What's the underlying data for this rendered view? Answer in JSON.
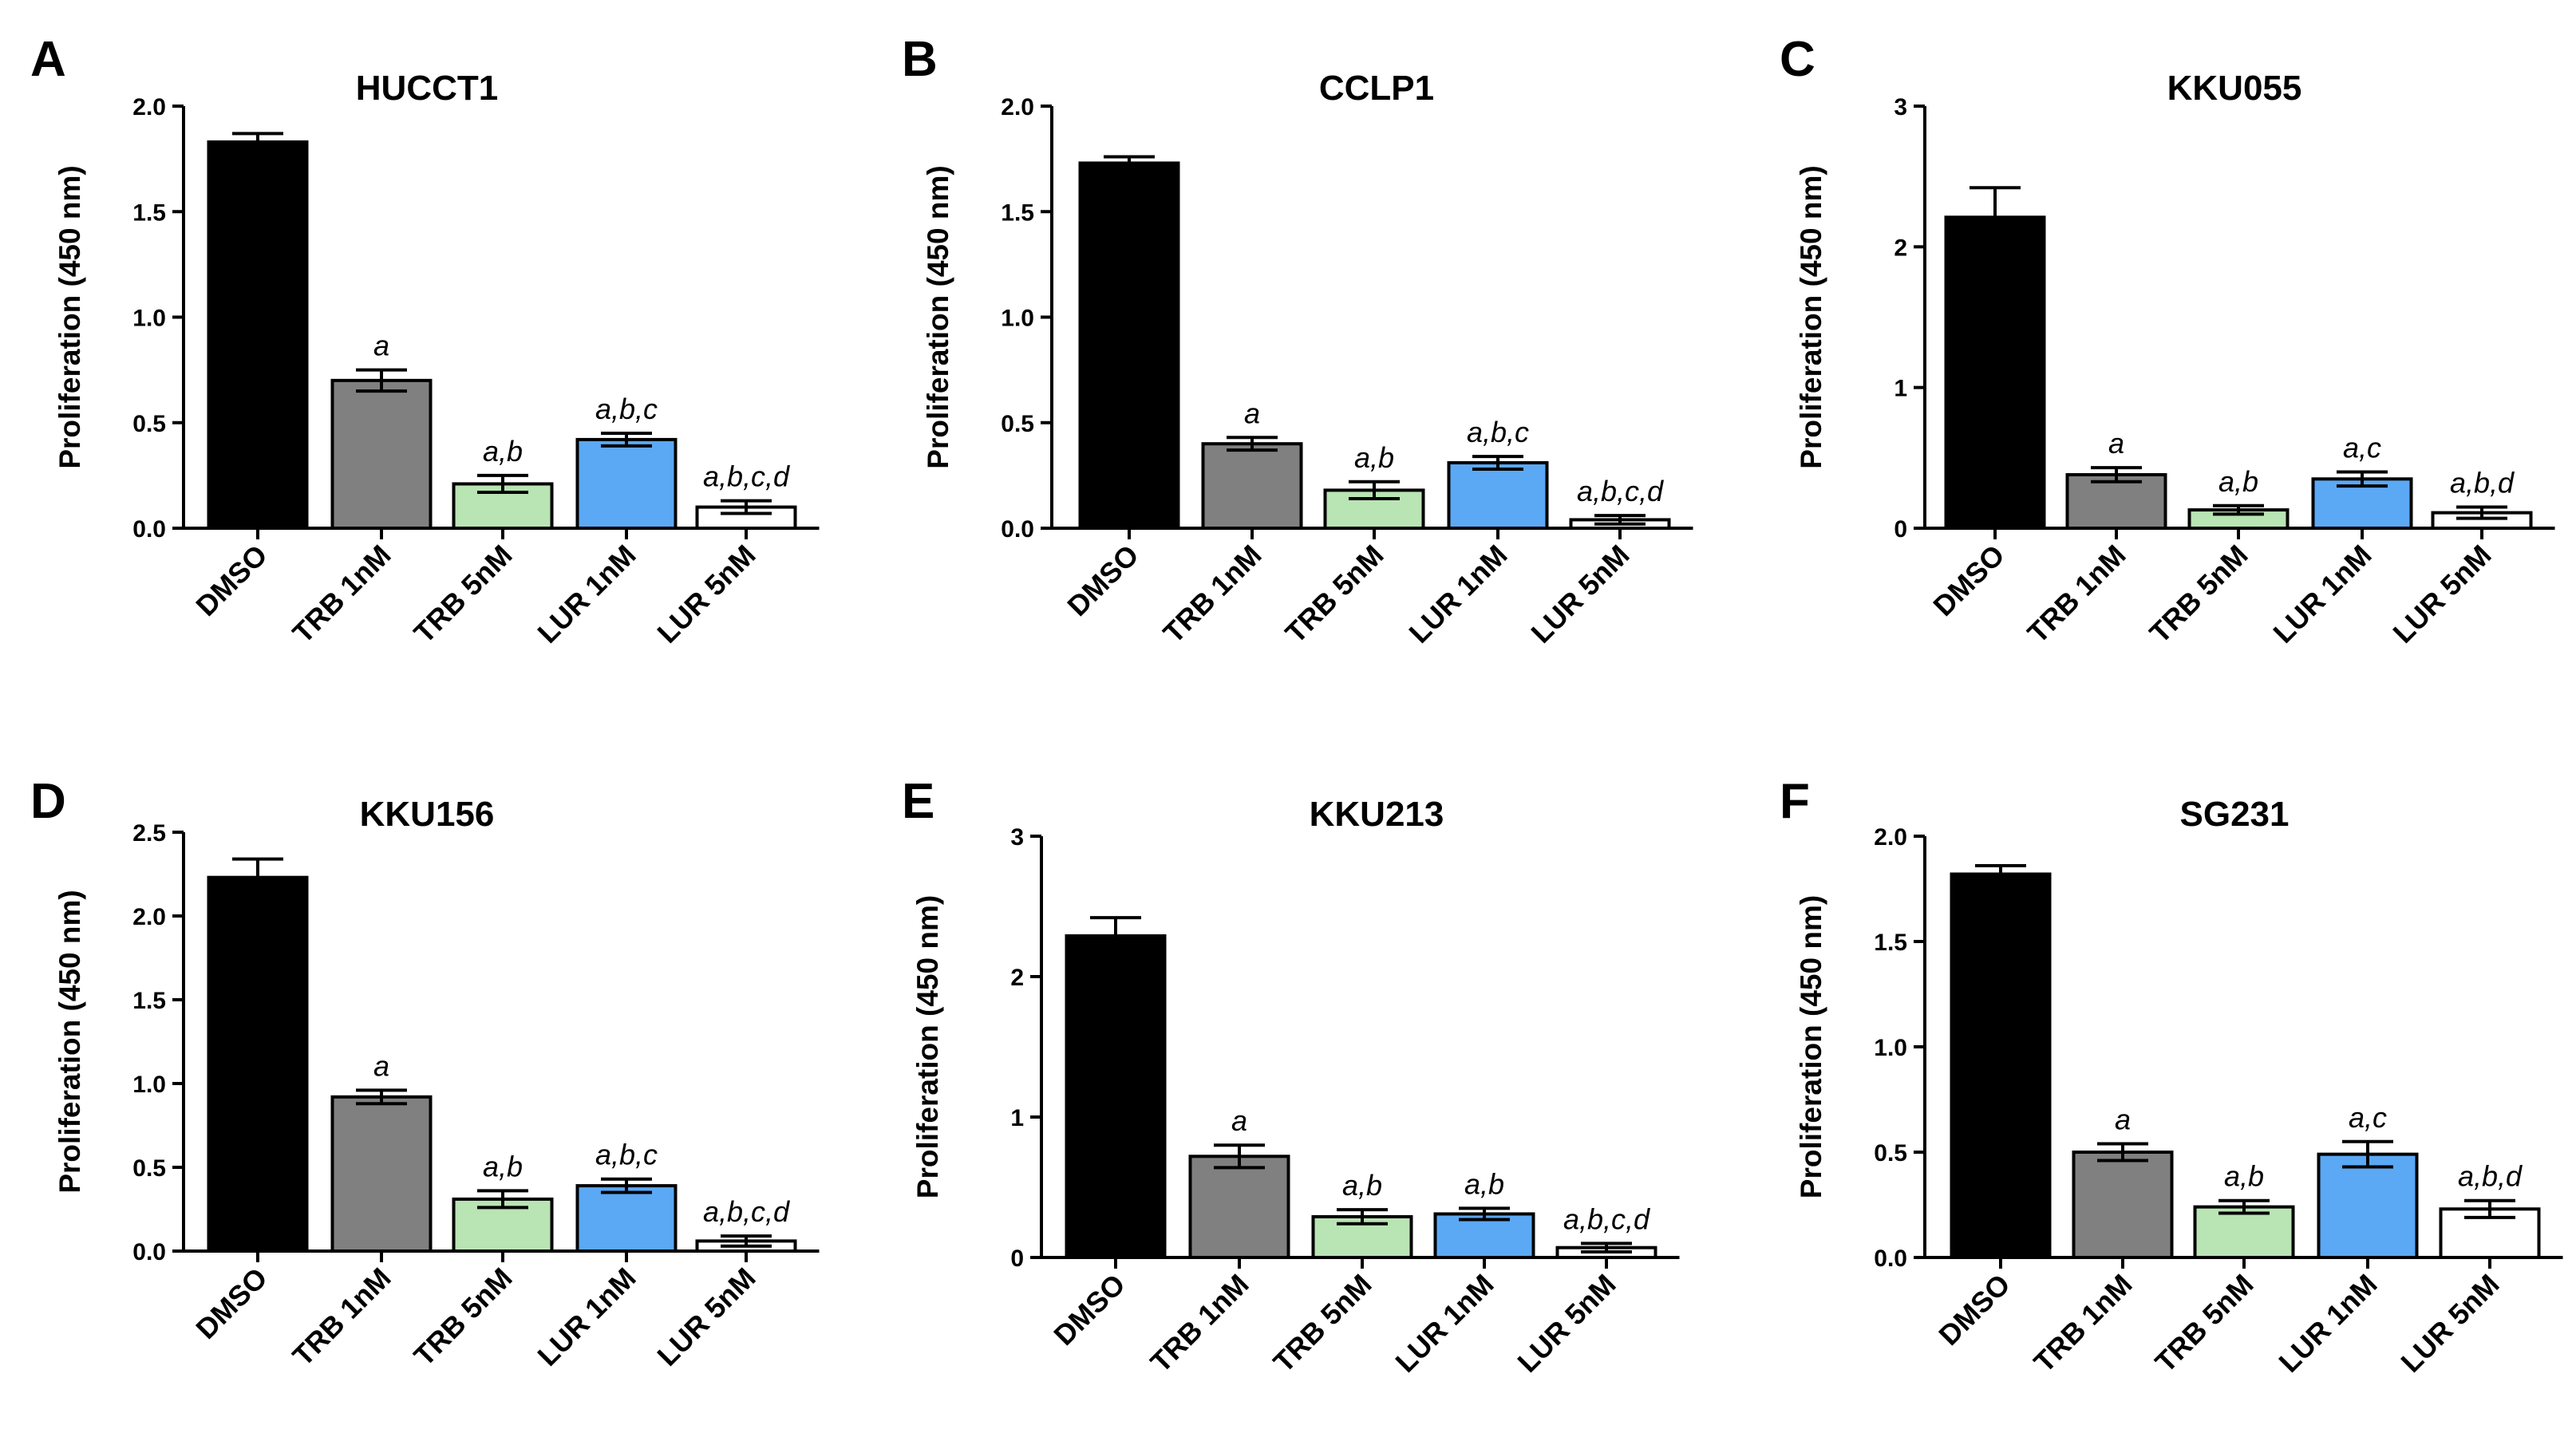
{
  "figure": {
    "colors": {
      "DMSO": "#000000",
      "TRB 1nM": "#808080",
      "TRB 5nM": "#b9e4b3",
      "LUR 1nM": "#5ba8f5",
      "LUR 5nM": "#ffffff"
    }
  },
  "chart_data": [
    {
      "panel": "A",
      "type": "bar",
      "title": "HUCCT1",
      "ylabel": "Proliferation (450 nm)",
      "xlabel": "",
      "categories": [
        "DMSO",
        "TRB 1nM",
        "TRB 5nM",
        "LUR 1nM",
        "LUR 5nM"
      ],
      "values": [
        1.83,
        0.7,
        0.21,
        0.42,
        0.1
      ],
      "errors": [
        0.04,
        0.05,
        0.04,
        0.03,
        0.03
      ],
      "significance": [
        "",
        "a",
        "a,b",
        "a,b,c",
        "a,b,c,d"
      ],
      "ylim": [
        0,
        2.0
      ],
      "yticks": [
        0.0,
        0.5,
        1.0,
        1.5,
        2.0
      ],
      "ytick_labels": [
        "0.0",
        "0.5",
        "1.0",
        "1.5",
        "2.0"
      ]
    },
    {
      "panel": "B",
      "type": "bar",
      "title": "CCLP1",
      "ylabel": "Proliferation (450 nm)",
      "xlabel": "",
      "categories": [
        "DMSO",
        "TRB 1nM",
        "TRB 5nM",
        "LUR 1nM",
        "LUR 5nM"
      ],
      "values": [
        1.73,
        0.4,
        0.18,
        0.31,
        0.04
      ],
      "errors": [
        0.03,
        0.03,
        0.04,
        0.03,
        0.02
      ],
      "significance": [
        "",
        "a",
        "a,b",
        "a,b,c",
        "a,b,c,d"
      ],
      "ylim": [
        0,
        2.0
      ],
      "yticks": [
        0.0,
        0.5,
        1.0,
        1.5,
        2.0
      ],
      "ytick_labels": [
        "0.0",
        "0.5",
        "1.0",
        "1.5",
        "2.0"
      ]
    },
    {
      "panel": "C",
      "type": "bar",
      "title": "KKU055",
      "ylabel": "Proliferation (450 nm)",
      "xlabel": "",
      "categories": [
        "DMSO",
        "TRB 1nM",
        "TRB 5nM",
        "LUR 1nM",
        "LUR 5nM"
      ],
      "values": [
        2.21,
        0.38,
        0.13,
        0.35,
        0.11
      ],
      "errors": [
        0.21,
        0.05,
        0.03,
        0.05,
        0.04
      ],
      "significance": [
        "",
        "a",
        "a,b",
        "a,c",
        "a,b,d"
      ],
      "ylim": [
        0,
        3
      ],
      "yticks": [
        0,
        1,
        2,
        3
      ],
      "ytick_labels": [
        "0",
        "1",
        "2",
        "3"
      ]
    },
    {
      "panel": "D",
      "type": "bar",
      "title": "KKU156",
      "ylabel": "Proliferation (450 nm)",
      "xlabel": "",
      "categories": [
        "DMSO",
        "TRB 1nM",
        "TRB 5nM",
        "LUR 1nM",
        "LUR 5nM"
      ],
      "values": [
        2.23,
        0.92,
        0.31,
        0.39,
        0.06
      ],
      "errors": [
        0.11,
        0.04,
        0.05,
        0.04,
        0.03
      ],
      "significance": [
        "",
        "a",
        "a,b",
        "a,b,c",
        "a,b,c,d"
      ],
      "ylim": [
        0,
        2.5
      ],
      "yticks": [
        0.0,
        0.5,
        1.0,
        1.5,
        2.0,
        2.5
      ],
      "ytick_labels": [
        "0.0",
        "0.5",
        "1.0",
        "1.5",
        "2.0",
        "2.5"
      ]
    },
    {
      "panel": "E",
      "type": "bar",
      "title": "KKU213",
      "ylabel": "Proliferation (450 nm)",
      "xlabel": "",
      "categories": [
        "DMSO",
        "TRB 1nM",
        "TRB 5nM",
        "LUR 1nM",
        "LUR 5nM"
      ],
      "values": [
        2.29,
        0.72,
        0.29,
        0.31,
        0.07
      ],
      "errors": [
        0.13,
        0.08,
        0.05,
        0.04,
        0.03
      ],
      "significance": [
        "",
        "a",
        "a,b",
        "a,b",
        "a,b,c,d"
      ],
      "ylim": [
        0,
        3
      ],
      "yticks": [
        0,
        1,
        2,
        3
      ],
      "ytick_labels": [
        "0",
        "1",
        "2",
        "3"
      ]
    },
    {
      "panel": "F",
      "type": "bar",
      "title": "SG231",
      "ylabel": "Proliferation (450 nm)",
      "xlabel": "",
      "categories": [
        "DMSO",
        "TRB 1nM",
        "TRB 5nM",
        "LUR 1nM",
        "LUR 5nM"
      ],
      "values": [
        1.82,
        0.5,
        0.24,
        0.49,
        0.23
      ],
      "errors": [
        0.04,
        0.04,
        0.03,
        0.06,
        0.04
      ],
      "significance": [
        "",
        "a",
        "a,b",
        "a,c",
        "a,b,d"
      ],
      "ylim": [
        0,
        2.0
      ],
      "yticks": [
        0.0,
        0.5,
        1.0,
        1.5,
        2.0
      ],
      "ytick_labels": [
        "0.0",
        "0.5",
        "1.0",
        "1.5",
        "2.0"
      ]
    }
  ]
}
